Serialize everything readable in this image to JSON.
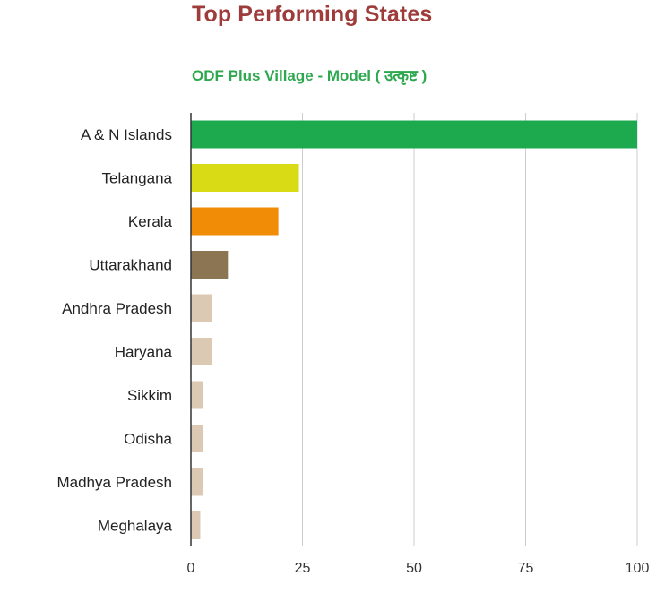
{
  "header": {
    "title": "Top Performing States"
  },
  "chart_data": {
    "type": "bar",
    "orientation": "horizontal",
    "title": "Top Performing States",
    "subtitle": "ODF Plus Village - Model ( उत्कृष्ट )",
    "xlabel": "",
    "ylabel": "",
    "categories": [
      "A & N Islands",
      "Telangana",
      "Kerala",
      "Uttarakhand",
      "Andhra Pradesh",
      "Haryana",
      "Sikkim",
      "Odisha",
      "Madhya Pradesh",
      "Meghalaya"
    ],
    "values": [
      100,
      24.2,
      19.6,
      8.3,
      4.8,
      4.8,
      2.8,
      2.7,
      2.7,
      2.1
    ],
    "colors": [
      "#1daa4f",
      "#d9dc14",
      "#f08c05",
      "#8b7553",
      "#dcc9b3",
      "#dcc9b3",
      "#dcc9b3",
      "#dcc9b3",
      "#dcc9b3",
      "#dcc9b3"
    ],
    "xlim": [
      0,
      100
    ],
    "xticks": [
      "0",
      "25",
      "50",
      "75",
      "100"
    ],
    "grid": true,
    "gridline_color": "#cccccc",
    "axis_color": "#333333",
    "legend": "none"
  }
}
